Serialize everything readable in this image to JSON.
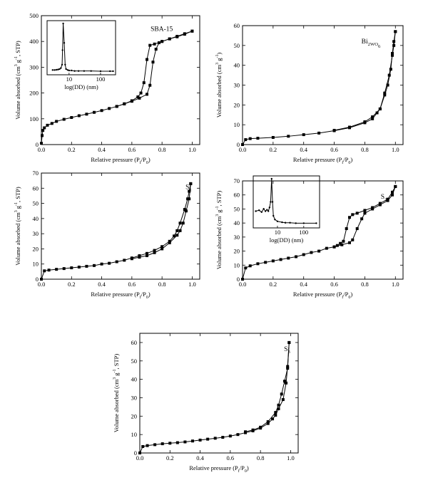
{
  "chart_data": [
    {
      "type": "line",
      "label": "SBA-15",
      "xlabel": "Relative pressure (P_f/P_0)",
      "ylabel": "Volume absorbed (cm^3 g^-1, STP)",
      "xlim": [
        0,
        1.05
      ],
      "ylim": [
        0,
        500
      ],
      "xticks": [
        0.0,
        0.2,
        0.4,
        0.6,
        0.8,
        1.0
      ],
      "yticks": [
        0,
        100,
        200,
        300,
        400,
        500
      ],
      "series": [
        {
          "role": "adsorption",
          "x": [
            0.0,
            0.005,
            0.01,
            0.02,
            0.04,
            0.07,
            0.1,
            0.15,
            0.2,
            0.25,
            0.3,
            0.35,
            0.4,
            0.45,
            0.5,
            0.55,
            0.6,
            0.65,
            0.7,
            0.72,
            0.74,
            0.76,
            0.78,
            0.8,
            0.85,
            0.9,
            0.95,
            1.0
          ],
          "y": [
            5,
            35,
            55,
            65,
            75,
            82,
            90,
            98,
            105,
            112,
            118,
            125,
            132,
            140,
            148,
            158,
            168,
            180,
            195,
            230,
            320,
            370,
            395,
            400,
            410,
            418,
            428,
            440
          ]
        },
        {
          "role": "desorption",
          "x": [
            1.0,
            0.95,
            0.9,
            0.85,
            0.8,
            0.75,
            0.72,
            0.7,
            0.68,
            0.66,
            0.64,
            0.6,
            0.55,
            0.5
          ],
          "y": [
            440,
            430,
            420,
            410,
            400,
            390,
            385,
            330,
            240,
            200,
            185,
            170,
            158,
            148
          ]
        }
      ],
      "inset": {
        "xlabel": "log(DD) (nm)",
        "xscale": "log",
        "xlim": [
          2,
          300
        ],
        "xticks": [
          10,
          100
        ],
        "x": [
          3,
          3.5,
          4,
          4.5,
          5,
          5.5,
          6,
          6.2,
          6.5,
          7,
          7.5,
          8,
          9,
          10,
          12,
          15,
          20,
          30,
          50,
          100,
          200,
          250
        ],
        "y": [
          0.04,
          0.04,
          0.045,
          0.05,
          0.06,
          0.08,
          0.15,
          0.45,
          1.0,
          0.6,
          0.15,
          0.06,
          0.04,
          0.03,
          0.03,
          0.02,
          0.02,
          0.02,
          0.02,
          0.015,
          0.015,
          0.015
        ]
      }
    },
    {
      "type": "line",
      "label": "Bi_2WO_6",
      "xlabel": "Relative pressure (P_f/P_0)",
      "ylabel": "Volume absorbed (cm^3 g^-1)",
      "xlim": [
        0,
        1.05
      ],
      "ylim": [
        0,
        60
      ],
      "xticks": [
        0.0,
        0.2,
        0.4,
        0.6,
        0.8,
        1.0
      ],
      "yticks": [
        0,
        10,
        20,
        30,
        40,
        50,
        60
      ],
      "series": [
        {
          "role": "adsorption",
          "x": [
            0.0,
            0.02,
            0.05,
            0.1,
            0.2,
            0.3,
            0.4,
            0.5,
            0.6,
            0.7,
            0.8,
            0.85,
            0.88,
            0.9,
            0.93,
            0.95,
            0.97,
            0.98,
            0.99,
            1.0
          ],
          "y": [
            0,
            2.5,
            3,
            3.2,
            3.6,
            4.2,
            5,
            5.8,
            7,
            8.5,
            11,
            13,
            16,
            18,
            25,
            30,
            38,
            46,
            52,
            57
          ]
        },
        {
          "role": "desorption",
          "x": [
            1.0,
            0.99,
            0.98,
            0.96,
            0.93,
            0.9,
            0.85,
            0.8,
            0.7,
            0.6
          ],
          "y": [
            57,
            50,
            45,
            35,
            26,
            18,
            14,
            11.5,
            8.8,
            7.2
          ]
        }
      ]
    },
    {
      "type": "line",
      "label": "S_1",
      "xlabel": "Relative pressure (P_f/P_0)",
      "ylabel": "Volume absorbed (cm^3 g^-1, STP)",
      "xlim": [
        0,
        1.05
      ],
      "ylim": [
        0,
        70
      ],
      "xticks": [
        0.0,
        0.2,
        0.4,
        0.6,
        0.8,
        1.0
      ],
      "yticks": [
        0,
        10,
        20,
        30,
        40,
        50,
        60,
        70
      ],
      "series": [
        {
          "role": "adsorption",
          "x": [
            0.0,
            0.02,
            0.05,
            0.1,
            0.15,
            0.2,
            0.25,
            0.3,
            0.35,
            0.4,
            0.45,
            0.5,
            0.55,
            0.6,
            0.65,
            0.7,
            0.75,
            0.8,
            0.85,
            0.88,
            0.9,
            0.92,
            0.95,
            0.97,
            0.98,
            0.99
          ],
          "y": [
            0,
            5.5,
            6,
            6.5,
            7,
            7.5,
            8,
            8.5,
            9,
            10,
            10.5,
            11.5,
            12.5,
            14,
            15.5,
            17,
            19,
            21.5,
            25,
            28.5,
            32,
            37,
            46,
            53,
            58,
            63
          ]
        },
        {
          "role": "desorption",
          "x": [
            0.99,
            0.98,
            0.96,
            0.94,
            0.92,
            0.9,
            0.85,
            0.8,
            0.75,
            0.7,
            0.65,
            0.6
          ],
          "y": [
            63,
            53,
            45,
            37,
            32,
            29,
            24,
            20,
            17.5,
            15.5,
            14.5,
            13.5
          ]
        }
      ]
    },
    {
      "type": "line",
      "label": "S_2",
      "xlabel": "Relative pressure (P_f/P_0)",
      "ylabel": "Volume absorbed (cm^3 g^-1, STP)",
      "xlim": [
        0,
        1.05
      ],
      "ylim": [
        0,
        70
      ],
      "xticks": [
        0.0,
        0.2,
        0.4,
        0.6,
        0.8,
        1.0
      ],
      "yticks": [
        0,
        10,
        20,
        30,
        40,
        50,
        60,
        70
      ],
      "series": [
        {
          "role": "adsorption",
          "x": [
            0.0,
            0.02,
            0.05,
            0.1,
            0.15,
            0.2,
            0.25,
            0.3,
            0.35,
            0.4,
            0.45,
            0.5,
            0.55,
            0.6,
            0.65,
            0.7,
            0.72,
            0.75,
            0.78,
            0.8,
            0.85,
            0.9,
            0.95,
            0.98,
            1.0
          ],
          "y": [
            0,
            8,
            9.5,
            11,
            12,
            13,
            14,
            15,
            16,
            17.5,
            19,
            20,
            22,
            23,
            24.5,
            26,
            28,
            36,
            43,
            47,
            50,
            53,
            56,
            60,
            66
          ]
        },
        {
          "role": "desorption",
          "x": [
            1.0,
            0.98,
            0.95,
            0.9,
            0.85,
            0.8,
            0.75,
            0.72,
            0.7,
            0.68,
            0.66,
            0.64,
            0.62,
            0.6
          ],
          "y": [
            66,
            62,
            57,
            54,
            51,
            49,
            47,
            46,
            44,
            36,
            27,
            25.5,
            24,
            23
          ]
        }
      ],
      "inset": {
        "xlabel": "log(DD) (nm)",
        "xscale": "log",
        "xlim": [
          1.2,
          400
        ],
        "xticks": [
          10,
          100
        ],
        "x": [
          1.5,
          2,
          2.5,
          3,
          3.5,
          4,
          4.5,
          5,
          5.5,
          6,
          6.5,
          7,
          8,
          10,
          15,
          20,
          30,
          50,
          100,
          300
        ],
        "y": [
          0.3,
          0.32,
          0.28,
          0.35,
          0.3,
          0.33,
          0.3,
          0.38,
          0.5,
          1.0,
          0.5,
          0.2,
          0.12,
          0.08,
          0.06,
          0.05,
          0.05,
          0.04,
          0.04,
          0.04
        ]
      }
    },
    {
      "type": "line",
      "label": "S_3",
      "xlabel": "Relative pressure (P_f/P_0)",
      "ylabel": "Volume absorbed (cm^3 g^-1, STP)",
      "xlim": [
        0,
        1.05
      ],
      "ylim": [
        0,
        65
      ],
      "xticks": [
        0.0,
        0.2,
        0.4,
        0.6,
        0.8,
        1.0
      ],
      "yticks": [
        0,
        10,
        20,
        30,
        40,
        50,
        60
      ],
      "series": [
        {
          "role": "adsorption",
          "x": [
            0.0,
            0.02,
            0.05,
            0.1,
            0.15,
            0.2,
            0.25,
            0.3,
            0.35,
            0.4,
            0.45,
            0.5,
            0.55,
            0.6,
            0.65,
            0.7,
            0.75,
            0.8,
            0.85,
            0.88,
            0.9,
            0.92,
            0.95,
            0.97,
            0.98,
            0.99
          ],
          "y": [
            0,
            3.5,
            4,
            4.5,
            5,
            5.3,
            5.6,
            6,
            6.5,
            7,
            7.5,
            8,
            8.5,
            9.2,
            10,
            11,
            12,
            13.5,
            16,
            18.5,
            20.5,
            24,
            29,
            38,
            47,
            60
          ]
        },
        {
          "role": "desorption",
          "x": [
            0.99,
            0.98,
            0.96,
            0.94,
            0.92,
            0.9,
            0.85,
            0.8,
            0.75,
            0.7
          ],
          "y": [
            60,
            46,
            39,
            32,
            26,
            22,
            17,
            14,
            12.5,
            11.5
          ]
        }
      ]
    }
  ]
}
